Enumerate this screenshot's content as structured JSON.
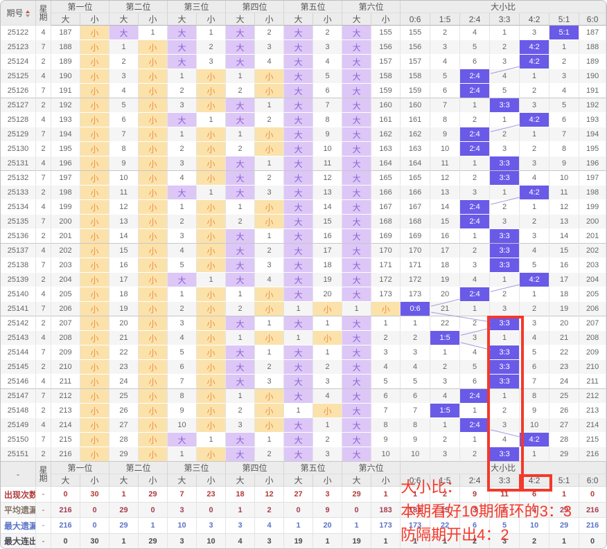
{
  "header": {
    "period": "期号",
    "week_l1": "星",
    "week_l2": "期",
    "positions": [
      "第一位",
      "第二位",
      "第三位",
      "第四位",
      "第五位",
      "第六位"
    ],
    "big": "大",
    "small": "小",
    "ratio_title": "大小比",
    "ratio_cols": [
      "0:6",
      "1:5",
      "2:4",
      "3:3",
      "4:2",
      "5:1",
      "6:0"
    ]
  },
  "rows": [
    {
      "period": "25122",
      "week": "4",
      "cells": [
        "187",
        "小",
        "大",
        "1",
        "大",
        "1",
        "大",
        "2",
        "大",
        "2",
        "大",
        "155"
      ],
      "ratio": [
        "155",
        "2",
        "4",
        "1",
        "3",
        "5:1",
        "187"
      ]
    },
    {
      "period": "25123",
      "week": "7",
      "cells": [
        "188",
        "小",
        "1",
        "小",
        "大",
        "2",
        "大",
        "3",
        "大",
        "3",
        "大",
        "156"
      ],
      "ratio": [
        "156",
        "3",
        "5",
        "2",
        "4:2",
        "1",
        "188"
      ]
    },
    {
      "period": "25124",
      "week": "2",
      "cells": [
        "189",
        "小",
        "2",
        "小",
        "大",
        "3",
        "大",
        "4",
        "大",
        "4",
        "大",
        "157"
      ],
      "ratio": [
        "157",
        "4",
        "6",
        "3",
        "4:2",
        "2",
        "189"
      ]
    },
    {
      "period": "25125",
      "week": "4",
      "cells": [
        "190",
        "小",
        "3",
        "小",
        "1",
        "小",
        "1",
        "小",
        "大",
        "5",
        "大",
        "158"
      ],
      "ratio": [
        "158",
        "5",
        "2:4",
        "4",
        "1",
        "3",
        "190"
      ]
    },
    {
      "period": "25126",
      "week": "7",
      "cells": [
        "191",
        "小",
        "4",
        "小",
        "2",
        "小",
        "2",
        "小",
        "大",
        "6",
        "大",
        "159"
      ],
      "ratio": [
        "159",
        "6",
        "2:4",
        "5",
        "2",
        "4",
        "191"
      ]
    },
    {
      "period": "25127",
      "week": "2",
      "cells": [
        "192",
        "小",
        "5",
        "小",
        "3",
        "小",
        "大",
        "1",
        "大",
        "7",
        "大",
        "160"
      ],
      "ratio": [
        "160",
        "7",
        "1",
        "3:3",
        "3",
        "5",
        "192"
      ]
    },
    {
      "period": "25128",
      "week": "4",
      "cells": [
        "193",
        "小",
        "6",
        "小",
        "大",
        "1",
        "大",
        "2",
        "大",
        "8",
        "大",
        "161"
      ],
      "ratio": [
        "161",
        "8",
        "2",
        "1",
        "4:2",
        "6",
        "193"
      ]
    },
    {
      "period": "25129",
      "week": "7",
      "cells": [
        "194",
        "小",
        "7",
        "小",
        "1",
        "小",
        "1",
        "小",
        "大",
        "9",
        "大",
        "162"
      ],
      "ratio": [
        "162",
        "9",
        "2:4",
        "2",
        "1",
        "7",
        "194"
      ]
    },
    {
      "period": "25130",
      "week": "2",
      "cells": [
        "195",
        "小",
        "8",
        "小",
        "2",
        "小",
        "2",
        "小",
        "大",
        "10",
        "大",
        "163"
      ],
      "ratio": [
        "163",
        "10",
        "2:4",
        "3",
        "2",
        "8",
        "195"
      ]
    },
    {
      "period": "25131",
      "week": "4",
      "cells": [
        "196",
        "小",
        "9",
        "小",
        "3",
        "小",
        "大",
        "1",
        "大",
        "11",
        "大",
        "164"
      ],
      "ratio": [
        "164",
        "11",
        "1",
        "3:3",
        "3",
        "9",
        "196"
      ]
    },
    {
      "period": "25132",
      "week": "7",
      "cells": [
        "197",
        "小",
        "10",
        "小",
        "4",
        "小",
        "大",
        "2",
        "大",
        "12",
        "大",
        "165"
      ],
      "ratio": [
        "165",
        "12",
        "2",
        "3:3",
        "4",
        "10",
        "197"
      ]
    },
    {
      "period": "25133",
      "week": "2",
      "cells": [
        "198",
        "小",
        "11",
        "小",
        "大",
        "1",
        "大",
        "3",
        "大",
        "13",
        "大",
        "166"
      ],
      "ratio": [
        "166",
        "13",
        "3",
        "1",
        "4:2",
        "11",
        "198"
      ]
    },
    {
      "period": "25134",
      "week": "4",
      "cells": [
        "199",
        "小",
        "12",
        "小",
        "1",
        "小",
        "1",
        "小",
        "大",
        "14",
        "大",
        "167"
      ],
      "ratio": [
        "167",
        "14",
        "2:4",
        "2",
        "1",
        "12",
        "199"
      ]
    },
    {
      "period": "25135",
      "week": "7",
      "cells": [
        "200",
        "小",
        "13",
        "小",
        "2",
        "小",
        "2",
        "小",
        "大",
        "15",
        "大",
        "168"
      ],
      "ratio": [
        "168",
        "15",
        "2:4",
        "3",
        "2",
        "13",
        "200"
      ]
    },
    {
      "period": "25136",
      "week": "2",
      "cells": [
        "201",
        "小",
        "14",
        "小",
        "3",
        "小",
        "大",
        "1",
        "大",
        "16",
        "大",
        "169"
      ],
      "ratio": [
        "169",
        "16",
        "1",
        "3:3",
        "3",
        "14",
        "201"
      ]
    },
    {
      "period": "25137",
      "week": "4",
      "cells": [
        "202",
        "小",
        "15",
        "小",
        "4",
        "小",
        "大",
        "2",
        "大",
        "17",
        "大",
        "170"
      ],
      "ratio": [
        "170",
        "17",
        "2",
        "3:3",
        "4",
        "15",
        "202"
      ]
    },
    {
      "period": "25138",
      "week": "7",
      "cells": [
        "203",
        "小",
        "16",
        "小",
        "5",
        "小",
        "大",
        "3",
        "大",
        "18",
        "大",
        "171"
      ],
      "ratio": [
        "171",
        "18",
        "3",
        "3:3",
        "5",
        "16",
        "203"
      ]
    },
    {
      "period": "25139",
      "week": "2",
      "cells": [
        "204",
        "小",
        "17",
        "小",
        "大",
        "1",
        "大",
        "4",
        "大",
        "19",
        "大",
        "172"
      ],
      "ratio": [
        "172",
        "19",
        "4",
        "1",
        "4:2",
        "17",
        "204"
      ]
    },
    {
      "period": "25140",
      "week": "4",
      "cells": [
        "205",
        "小",
        "18",
        "小",
        "1",
        "小",
        "1",
        "小",
        "大",
        "20",
        "大",
        "173"
      ],
      "ratio": [
        "173",
        "20",
        "2:4",
        "2",
        "1",
        "18",
        "205"
      ]
    },
    {
      "period": "25141",
      "week": "7",
      "cells": [
        "206",
        "小",
        "19",
        "小",
        "2",
        "小",
        "2",
        "小",
        "1",
        "小",
        "1",
        "小"
      ],
      "ratio": [
        "0:6",
        "21",
        "1",
        "3",
        "2",
        "19",
        "206"
      ]
    },
    {
      "period": "25142",
      "week": "2",
      "cells": [
        "207",
        "小",
        "20",
        "小",
        "3",
        "小",
        "大",
        "1",
        "大",
        "1",
        "大",
        "1"
      ],
      "ratio": [
        "1",
        "22",
        "2",
        "3:3",
        "3",
        "20",
        "207"
      ]
    },
    {
      "period": "25143",
      "week": "4",
      "cells": [
        "208",
        "小",
        "21",
        "小",
        "4",
        "小",
        "1",
        "小",
        "1",
        "小",
        "大",
        "2"
      ],
      "ratio": [
        "2",
        "1:5",
        "3",
        "1",
        "4",
        "21",
        "208"
      ]
    },
    {
      "period": "25144",
      "week": "7",
      "cells": [
        "209",
        "小",
        "22",
        "小",
        "5",
        "小",
        "大",
        "1",
        "大",
        "1",
        "大",
        "3"
      ],
      "ratio": [
        "3",
        "1",
        "4",
        "3:3",
        "5",
        "22",
        "209"
      ]
    },
    {
      "period": "25145",
      "week": "2",
      "cells": [
        "210",
        "小",
        "23",
        "小",
        "6",
        "小",
        "大",
        "2",
        "大",
        "2",
        "大",
        "4"
      ],
      "ratio": [
        "4",
        "2",
        "5",
        "3:3",
        "6",
        "23",
        "210"
      ]
    },
    {
      "period": "25146",
      "week": "4",
      "cells": [
        "211",
        "小",
        "24",
        "小",
        "7",
        "小",
        "大",
        "3",
        "大",
        "3",
        "大",
        "5"
      ],
      "ratio": [
        "5",
        "3",
        "6",
        "3:3",
        "7",
        "24",
        "211"
      ]
    },
    {
      "period": "25147",
      "week": "7",
      "cells": [
        "212",
        "小",
        "25",
        "小",
        "8",
        "小",
        "1",
        "小",
        "大",
        "4",
        "大",
        "6"
      ],
      "ratio": [
        "6",
        "4",
        "2:4",
        "1",
        "8",
        "25",
        "212"
      ]
    },
    {
      "period": "25148",
      "week": "2",
      "cells": [
        "213",
        "小",
        "26",
        "小",
        "9",
        "小",
        "2",
        "小",
        "1",
        "小",
        "大",
        "7"
      ],
      "ratio": [
        "7",
        "1:5",
        "1",
        "2",
        "9",
        "26",
        "213"
      ]
    },
    {
      "period": "25149",
      "week": "4",
      "cells": [
        "214",
        "小",
        "27",
        "小",
        "10",
        "小",
        "3",
        "小",
        "大",
        "1",
        "大",
        "8"
      ],
      "ratio": [
        "8",
        "1",
        "2:4",
        "3",
        "10",
        "27",
        "214"
      ]
    },
    {
      "period": "25150",
      "week": "7",
      "cells": [
        "215",
        "小",
        "28",
        "小",
        "大",
        "1",
        "大",
        "1",
        "大",
        "2",
        "大",
        "9"
      ],
      "ratio": [
        "9",
        "2",
        "1",
        "4",
        "4:2",
        "28",
        "215"
      ]
    },
    {
      "period": "25151",
      "week": "2",
      "cells": [
        "216",
        "小",
        "29",
        "小",
        "1",
        "小",
        "大",
        "2",
        "大",
        "3",
        "大",
        "10"
      ],
      "ratio": [
        "10",
        "3",
        "2",
        "3:3",
        "1",
        "29",
        "216"
      ]
    }
  ],
  "footer": {
    "dash": "-",
    "stats": [
      {
        "label": "出现次数",
        "week": "-",
        "cells": [
          "0",
          "30",
          "1",
          "29",
          "7",
          "23",
          "18",
          "12",
          "27",
          "3",
          "29",
          "1"
        ],
        "ratio": [
          "1",
          "2",
          "9",
          "11",
          "6",
          "1",
          "0"
        ]
      },
      {
        "label": "平均遗漏",
        "week": "-",
        "cells": [
          "216",
          "0",
          "29",
          "0",
          "3",
          "0",
          "1",
          "2",
          "0",
          "9",
          "0",
          "183"
        ],
        "ratio": [
          "183",
          "15",
          "3",
          "2",
          "4",
          "29",
          "216"
        ]
      },
      {
        "label": "最大遗漏",
        "week": "-",
        "cells": [
          "216",
          "0",
          "29",
          "1",
          "10",
          "3",
          "3",
          "4",
          "1",
          "20",
          "1",
          "173"
        ],
        "ratio": [
          "173",
          "22",
          "6",
          "5",
          "10",
          "29",
          "216"
        ]
      },
      {
        "label": "最大连出",
        "week": "-",
        "cells": [
          "0",
          "30",
          "1",
          "29",
          "3",
          "10",
          "4",
          "3",
          "19",
          "1",
          "19",
          "1"
        ],
        "ratio": [
          "1",
          "1",
          "2",
          "3",
          "2",
          "1",
          "0"
        ]
      }
    ]
  },
  "annotation": {
    "line1": "大小比：",
    "line2": "本期看好10期循环的3：3",
    "line3": "防隔期开出4：2"
  },
  "colors": {
    "big-bg": "#dcc7f7",
    "big-text": "#8d5fd3",
    "small-bg": "#fbe2ab",
    "small-text": "#ee9043",
    "ratio-bg": "#6a5ae8",
    "ratio-text": "#ffffff",
    "annotation": "#f4392b",
    "occ": "#b13b3b",
    "avg-label": "#857467",
    "avg-value": "#a63e52",
    "maxmiss": "#5b74c8",
    "maxrun": "#4a4a52",
    "line": "#a69add"
  }
}
